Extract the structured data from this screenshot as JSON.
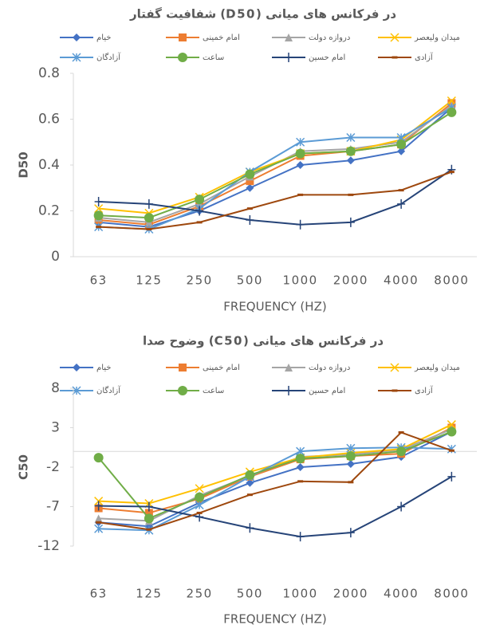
{
  "chart_data": [
    {
      "type": "line",
      "title": "شفافیت گفتار (D50) در فرکانس های میانی",
      "x_label": "FREQUENCY (HZ)",
      "y_label": "D50",
      "categories": [
        "63",
        "125",
        "250",
        "500",
        "1000",
        "2000",
        "4000",
        "8000"
      ],
      "ylim": [
        0,
        0.8
      ],
      "yticks": [
        0,
        0.2,
        0.4,
        0.6,
        0.8
      ],
      "grid": false,
      "series": [
        {
          "name": "خیام",
          "color": "#4472c4",
          "marker": "diamond",
          "values": [
            0.15,
            0.13,
            0.2,
            0.3,
            0.4,
            0.42,
            0.46,
            0.65
          ]
        },
        {
          "name": "امام خمینی",
          "color": "#ed7d31",
          "marker": "square",
          "values": [
            0.16,
            0.14,
            0.22,
            0.33,
            0.44,
            0.46,
            0.49,
            0.67
          ]
        },
        {
          "name": "دروازه دولت",
          "color": "#a5a5a5",
          "marker": "triangle",
          "values": [
            0.17,
            0.15,
            0.23,
            0.35,
            0.46,
            0.47,
            0.5,
            0.66
          ]
        },
        {
          "name": "میدان ولیعصر",
          "color": "#ffc000",
          "marker": "x",
          "values": [
            0.21,
            0.19,
            0.26,
            0.37,
            0.45,
            0.46,
            0.51,
            0.68
          ]
        },
        {
          "name": "آزادگان",
          "color": "#5b9bd5",
          "marker": "star",
          "values": [
            0.13,
            0.12,
            0.21,
            0.37,
            0.5,
            0.52,
            0.52,
            0.65
          ]
        },
        {
          "name": "ساعت",
          "color": "#70ad47",
          "marker": "circle",
          "values": [
            0.18,
            0.17,
            0.25,
            0.36,
            0.45,
            0.46,
            0.49,
            0.63
          ]
        },
        {
          "name": "امام حسین",
          "color": "#264478",
          "marker": "plus",
          "values": [
            0.24,
            0.23,
            0.2,
            0.16,
            0.14,
            0.15,
            0.23,
            0.38
          ]
        },
        {
          "name": "آزادی",
          "color": "#9e480e",
          "marker": "dash",
          "values": [
            0.13,
            0.12,
            0.15,
            0.21,
            0.27,
            0.27,
            0.29,
            0.37
          ]
        }
      ]
    },
    {
      "type": "line",
      "title": "وضوح صدا (C50) در فرکانس های میانی",
      "x_label": "FREQUENCY (HZ)",
      "y_label": "C50",
      "categories": [
        "63",
        "125",
        "250",
        "500",
        "1000",
        "2000",
        "4000",
        "8000"
      ],
      "ylim": [
        -12,
        8
      ],
      "yticks": [
        -12,
        -7,
        -2,
        3,
        8
      ],
      "grid": false,
      "series": [
        {
          "name": "خیام",
          "color": "#4472c4",
          "marker": "diamond",
          "values": [
            -9,
            -9.5,
            -6.5,
            -4,
            -2,
            -1.6,
            -0.7,
            2.5
          ]
        },
        {
          "name": "امام خمینی",
          "color": "#ed7d31",
          "marker": "square",
          "values": [
            -7.2,
            -7.8,
            -6,
            -3.2,
            -1,
            -0.6,
            -0.3,
            3
          ]
        },
        {
          "name": "دروازه دولت",
          "color": "#a5a5a5",
          "marker": "triangle",
          "values": [
            -8.5,
            -8.8,
            -5.6,
            -3.1,
            -0.7,
            -0.4,
            0.2,
            2.8
          ]
        },
        {
          "name": "میدان ولیعصر",
          "color": "#ffc000",
          "marker": "x",
          "values": [
            -6.3,
            -6.6,
            -4.7,
            -2.6,
            -0.8,
            -0.2,
            0.3,
            3.4
          ]
        },
        {
          "name": "آزادگان",
          "color": "#5b9bd5",
          "marker": "star",
          "values": [
            -9.8,
            -10,
            -6.8,
            -3.2,
            0,
            0.4,
            0.5,
            0.3
          ]
        },
        {
          "name": "ساعت",
          "color": "#70ad47",
          "marker": "circle",
          "values": [
            -0.8,
            -8.5,
            -5.8,
            -3,
            -0.9,
            -0.6,
            0,
            2.5
          ]
        },
        {
          "name": "امام حسین",
          "color": "#264478",
          "marker": "plus",
          "values": [
            -6.9,
            -7,
            -8.3,
            -9.7,
            -10.8,
            -10.3,
            -7,
            -3.2
          ]
        },
        {
          "name": "آزادی",
          "color": "#9e480e",
          "marker": "dash",
          "values": [
            -9,
            -9.9,
            -7.8,
            -5.5,
            -3.8,
            -3.9,
            2.4,
            0.1
          ]
        }
      ]
    }
  ]
}
